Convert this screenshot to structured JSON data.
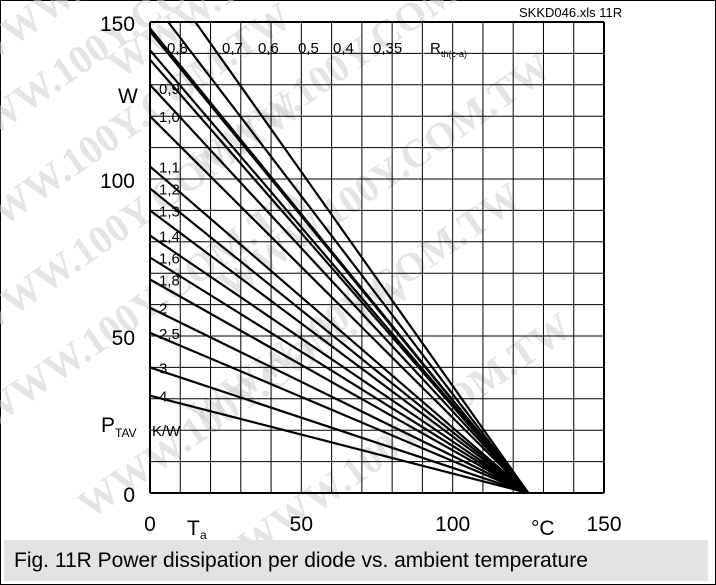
{
  "file_tag": "SKKD046.xls 11R",
  "caption": "Fig. 11R Power dissipation per diode vs. ambient temperature",
  "watermark_text": "WWW.100Y.COM.TW",
  "chart_data": {
    "type": "line",
    "title": "",
    "xlabel": "T",
    "xlabel_sub": "a",
    "xunit": "°C",
    "ylabel": "P",
    "ylabel_sub": "TAV",
    "yunit": "W",
    "xlim": [
      0,
      150
    ],
    "ylim": [
      0,
      150
    ],
    "x_ticks": [
      "0",
      "50",
      "100",
      "150"
    ],
    "y_ticks": [
      "0",
      "50",
      "100",
      "150"
    ],
    "x_tick_values": [
      0,
      50,
      100,
      150
    ],
    "y_tick_values": [
      0,
      50,
      100,
      150
    ],
    "grid": true,
    "grid_x_step": 10,
    "grid_y_step": 10,
    "rth_unit_label": "K/W",
    "rth_header_main": "R",
    "rth_header_sub": "th(c-a)",
    "convergence_point": {
      "x": 125,
      "y": 0
    },
    "series": [
      {
        "name": "0,35",
        "label_side": "top",
        "points": [
          [
            15,
            150
          ],
          [
            125,
            0
          ]
        ]
      },
      {
        "name": "0,4",
        "label_side": "top",
        "points": [
          [
            6,
            150
          ],
          [
            125,
            0
          ]
        ]
      },
      {
        "name": "0,5",
        "label_side": "top",
        "points": [
          [
            0,
            141
          ],
          [
            125,
            0
          ]
        ]
      },
      {
        "name": "0,6",
        "label_side": "top",
        "points": [
          [
            0,
            147
          ],
          [
            125,
            0
          ]
        ]
      },
      {
        "name": "0,7",
        "label_side": "top",
        "points": [
          [
            0,
            148
          ],
          [
            125,
            0
          ]
        ]
      },
      {
        "name": "0,8",
        "label_side": "top",
        "points": [
          [
            0,
            138
          ],
          [
            125,
            0
          ]
        ]
      },
      {
        "name": "0,9",
        "label_side": "left",
        "points": [
          [
            0,
            130
          ],
          [
            125,
            0
          ]
        ]
      },
      {
        "name": "1,0",
        "label_side": "left",
        "points": [
          [
            0,
            120
          ],
          [
            125,
            0
          ]
        ]
      },
      {
        "name": "1,1",
        "label_side": "left",
        "points": [
          [
            0,
            104
          ],
          [
            125,
            0
          ]
        ]
      },
      {
        "name": "1,2",
        "label_side": "left",
        "points": [
          [
            0,
            97
          ],
          [
            125,
            0
          ]
        ]
      },
      {
        "name": "1,3",
        "label_side": "left",
        "points": [
          [
            0,
            90
          ],
          [
            125,
            0
          ]
        ]
      },
      {
        "name": "1,4",
        "label_side": "left",
        "points": [
          [
            0,
            82
          ],
          [
            125,
            0
          ]
        ]
      },
      {
        "name": "1,6",
        "label_side": "left",
        "points": [
          [
            0,
            75
          ],
          [
            125,
            0
          ]
        ]
      },
      {
        "name": "1,8",
        "label_side": "left",
        "points": [
          [
            0,
            68
          ],
          [
            125,
            0
          ]
        ]
      },
      {
        "name": "2",
        "label_side": "left",
        "points": [
          [
            0,
            59
          ],
          [
            125,
            0
          ]
        ]
      },
      {
        "name": "2,5",
        "label_side": "left",
        "points": [
          [
            0,
            51
          ],
          [
            125,
            0
          ]
        ]
      },
      {
        "name": "3",
        "label_side": "left",
        "points": [
          [
            0,
            40
          ],
          [
            125,
            0
          ]
        ]
      },
      {
        "name": "4",
        "label_side": "left",
        "points": [
          [
            0,
            31
          ],
          [
            125,
            0
          ]
        ]
      }
    ]
  }
}
